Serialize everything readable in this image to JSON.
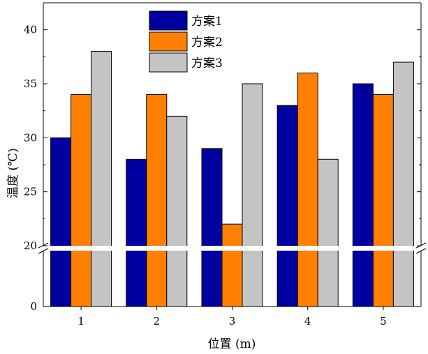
{
  "chart_data": {
    "type": "bar",
    "categories": [
      "1",
      "2",
      "3",
      "4",
      "5"
    ],
    "series": [
      {
        "name": "方案1",
        "values": [
          30,
          28,
          29,
          33,
          35
        ],
        "color": "#0000A0"
      },
      {
        "name": "方案2",
        "values": [
          34,
          34,
          22,
          36,
          34
        ],
        "color": "#FF8000"
      },
      {
        "name": "方案3",
        "values": [
          38,
          32,
          35,
          28,
          37
        ],
        "color": "#C4C4C4"
      }
    ],
    "xlabel": "位置 (m)",
    "ylabel": "温度 (℃)",
    "ylim": [
      0,
      42.5
    ],
    "axis_break": {
      "lower_segment": [
        0,
        10
      ],
      "upper_segment": [
        20,
        42.5
      ]
    },
    "y_ticks_lower": [
      0
    ],
    "y_ticks_upper": [
      20,
      25,
      30,
      35,
      40
    ],
    "grid": false,
    "legend_position": "top-center"
  }
}
